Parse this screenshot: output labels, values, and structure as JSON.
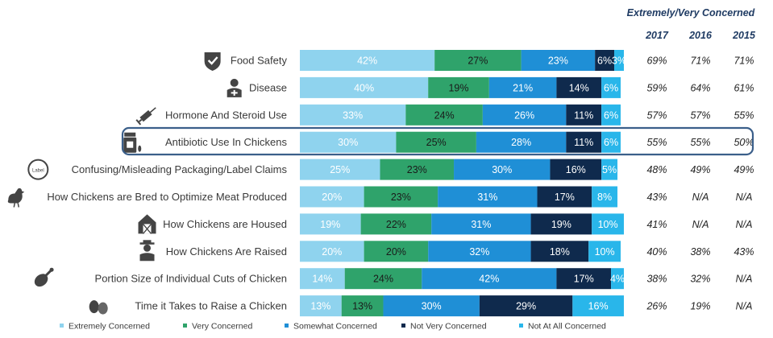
{
  "chart_data": {
    "type": "bar",
    "orientation": "horizontal",
    "stacked": true,
    "categories": [
      "Food Safety",
      "Disease",
      "Hormone And Steroid Use",
      "Antibiotic Use In Chickens",
      "Confusing/Misleading Packaging/Label Claims",
      "How Chickens are Bred to Optimize Meat Produced",
      "How Chickens are Housed",
      "How Chickens Are Raised",
      "Portion Size of Individual Cuts of Chicken",
      "Time it Takes to Raise a Chicken"
    ],
    "category_icons": [
      "shield-check-icon",
      "doctor-icon",
      "syringe-icon",
      "pill-bottle-icon",
      "label-badge-icon",
      "chicken-icon",
      "barn-icon",
      "farmer-icon",
      "drumstick-icon",
      "eggs-icon"
    ],
    "series": [
      {
        "name": "Extremely Concerned",
        "color": "#8fd3ee",
        "values": [
          42,
          40,
          33,
          30,
          25,
          20,
          19,
          20,
          14,
          13
        ],
        "labels": [
          "42%",
          "40%",
          "33%",
          "30%",
          "25%",
          "20%",
          "19%",
          "20%",
          "14%",
          "13%"
        ]
      },
      {
        "name": "Very Concerned",
        "color": "#2fa36b",
        "values": [
          27,
          19,
          24,
          25,
          23,
          23,
          22,
          20,
          24,
          13
        ],
        "labels": [
          "27%",
          "19%",
          "24%",
          "25%",
          "23%",
          "23%",
          "22%",
          "20%",
          "24%",
          "13%"
        ]
      },
      {
        "name": "Somewhat Concerned",
        "color": "#1f8fd6",
        "values": [
          23,
          21,
          26,
          28,
          30,
          31,
          31,
          32,
          42,
          30
        ],
        "labels": [
          "23%",
          "21%",
          "26%",
          "28%",
          "30%",
          "31%",
          "31%",
          "32%",
          "42%",
          "30%"
        ]
      },
      {
        "name": "Not Very Concerned",
        "color": "#0f2a4d",
        "values": [
          6,
          14,
          11,
          11,
          16,
          17,
          19,
          18,
          17,
          29
        ],
        "labels": [
          "6%",
          "14%",
          "11%",
          "11%",
          "16%",
          "17%",
          "19%",
          "18%",
          "17%",
          "29%"
        ]
      },
      {
        "name": "Not At All Concerned",
        "color": "#29b6ea",
        "values": [
          3,
          6,
          6,
          6,
          5,
          8,
          10,
          10,
          4,
          16
        ],
        "labels": [
          "3%",
          "6%",
          "6%",
          "6%",
          "5%",
          "8%",
          "10%",
          "10%",
          "4%",
          "16%"
        ]
      }
    ],
    "xlim": [
      0,
      100
    ],
    "highlighted_category": "Antibiotic Use In Chickens",
    "legend_position": "bottom",
    "table": {
      "title": "Extremely/Very Concerned",
      "columns": [
        "2017",
        "2016",
        "2015"
      ],
      "rows": [
        [
          "69%",
          "71%",
          "71%"
        ],
        [
          "59%",
          "64%",
          "61%"
        ],
        [
          "57%",
          "57%",
          "55%"
        ],
        [
          "55%",
          "55%",
          "50%"
        ],
        [
          "48%",
          "49%",
          "49%"
        ],
        [
          "43%",
          "N/A",
          "N/A"
        ],
        [
          "41%",
          "N/A",
          "N/A"
        ],
        [
          "40%",
          "38%",
          "43%"
        ],
        [
          "38%",
          "32%",
          "N/A"
        ],
        [
          "26%",
          "19%",
          "N/A"
        ]
      ]
    }
  }
}
